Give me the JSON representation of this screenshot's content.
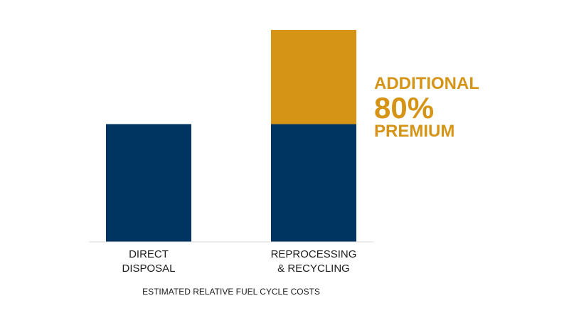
{
  "chart_data": {
    "type": "bar",
    "stacked": true,
    "categories": [
      [
        "DIRECT",
        "DISPOSAL"
      ],
      [
        "REPROCESSING",
        "& RECYCLING"
      ]
    ],
    "series": [
      {
        "values": [
          100,
          100
        ],
        "color": "#003461"
      },
      {
        "values": [
          0,
          80
        ],
        "color": "#D69417"
      }
    ],
    "xlabel": "ESTIMATED RELATIVE FUEL CYCLE COSTS",
    "ylim": [
      0,
      200
    ],
    "grid": false,
    "annotation": {
      "lines": [
        "ADDITIONAL",
        "80%",
        "PREMIUM"
      ],
      "color": "#D69417"
    }
  }
}
